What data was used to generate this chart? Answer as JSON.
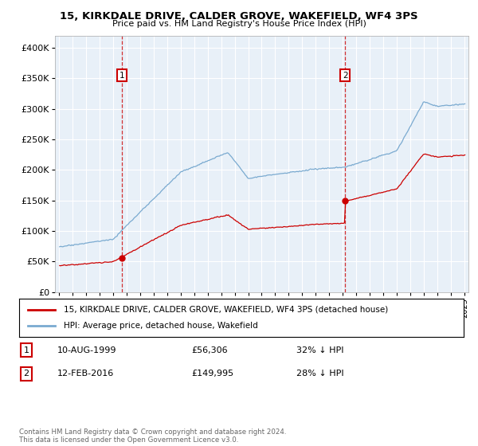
{
  "title": "15, KIRKDALE DRIVE, CALDER GROVE, WAKEFIELD, WF4 3PS",
  "subtitle": "Price paid vs. HM Land Registry's House Price Index (HPI)",
  "background_color": "#e8f0f8",
  "plot_bg_color": "#e8f0f8",
  "sale1_price": 56306,
  "sale2_price": 149995,
  "legend_line1": "15, KIRKDALE DRIVE, CALDER GROVE, WAKEFIELD, WF4 3PS (detached house)",
  "legend_line2": "HPI: Average price, detached house, Wakefield",
  "note1_label": "1",
  "note1_date": "10-AUG-1999",
  "note1_price": "£56,306",
  "note1_hpi": "32% ↓ HPI",
  "note2_label": "2",
  "note2_date": "12-FEB-2016",
  "note2_price": "£149,995",
  "note2_hpi": "28% ↓ HPI",
  "footer": "Contains HM Land Registry data © Crown copyright and database right 2024.\nThis data is licensed under the Open Government Licence v3.0.",
  "line_color_property": "#cc0000",
  "line_color_hpi": "#7aaad0",
  "ylim": [
    0,
    420000
  ],
  "xlim_start": 1994.7,
  "xlim_end": 2025.3
}
